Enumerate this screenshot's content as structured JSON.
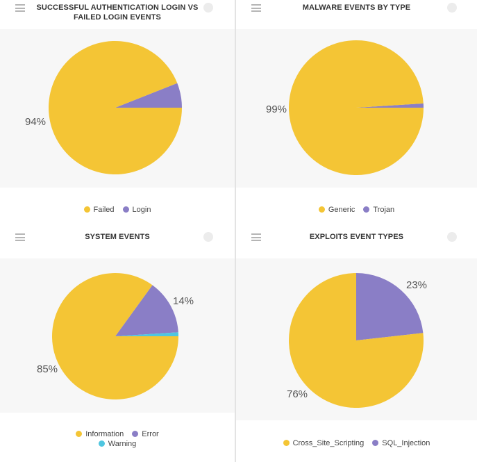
{
  "colors": {
    "yellow": "#f4c535",
    "purple": "#8a7ec6",
    "cyan": "#4fc6e0"
  },
  "chart_data": [
    {
      "type": "pie",
      "title": "SUCCESSFUL AUTHENTICATION LOGIN VS FAILED LOGIN EVENTS",
      "slices": [
        {
          "label": "Failed",
          "value": 94,
          "color": "#f4c535",
          "display": "94%"
        },
        {
          "label": "Login",
          "value": 6,
          "color": "#8a7ec6",
          "display": ""
        }
      ],
      "legend": [
        [
          "Failed",
          "Login"
        ]
      ]
    },
    {
      "type": "pie",
      "title": "MALWARE EVENTS BY TYPE",
      "slices": [
        {
          "label": "Generic",
          "value": 99,
          "color": "#f4c535",
          "display": "99%"
        },
        {
          "label": "Trojan",
          "value": 1,
          "color": "#8a7ec6",
          "display": ""
        }
      ],
      "legend": [
        [
          "Generic",
          "Trojan"
        ]
      ]
    },
    {
      "type": "pie",
      "title": "SYSTEM EVENTS",
      "slices": [
        {
          "label": "Information",
          "value": 85,
          "color": "#f4c535",
          "display": "85%"
        },
        {
          "label": "Error",
          "value": 14,
          "color": "#8a7ec6",
          "display": "14%"
        },
        {
          "label": "Warning",
          "value": 1,
          "color": "#4fc6e0",
          "display": ""
        }
      ],
      "legend": [
        [
          "Information",
          "Error"
        ],
        [
          "Warning"
        ]
      ]
    },
    {
      "type": "pie",
      "title": "EXPLOITS EVENT TYPES",
      "slices": [
        {
          "label": "Cross_Site_Scripting",
          "value": 76,
          "color": "#f4c535",
          "display": "76%"
        },
        {
          "label": "SQL_Injection",
          "value": 23,
          "color": "#8a7ec6",
          "display": "23%"
        }
      ],
      "legend": [
        [
          "Cross_Site_Scripting",
          "SQL_Injection"
        ]
      ]
    }
  ]
}
